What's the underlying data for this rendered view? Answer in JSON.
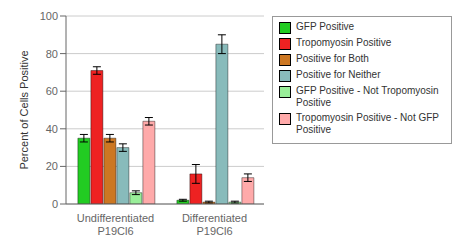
{
  "chart_data": {
    "type": "bar",
    "ylabel": "Percent of Cells Positive",
    "categories": [
      "Undifferentiated\nP19Cl6",
      "Differentiated\nP19Cl6"
    ],
    "series": [
      {
        "name": "GFP Positive",
        "color": "#22cc22",
        "values": [
          35,
          2
        ],
        "errors": [
          2,
          0.5
        ]
      },
      {
        "name": "Tropomyosin Positive",
        "color": "#ee2222",
        "values": [
          71,
          16
        ],
        "errors": [
          2,
          5
        ]
      },
      {
        "name": "Positive for Both",
        "color": "#cc7722",
        "values": [
          35,
          1
        ],
        "errors": [
          2,
          0.5
        ]
      },
      {
        "name": "Positive for Neither",
        "color": "#88bbbb",
        "values": [
          30,
          85
        ],
        "errors": [
          2,
          5
        ]
      },
      {
        "name": "GFP Positive - Not Tropomyosin\nPositive",
        "color": "#99ee99",
        "values": [
          6,
          1
        ],
        "errors": [
          1,
          0.5
        ]
      },
      {
        "name": "Tropomyosin Positive - Not GFP\nPositive",
        "color": "#ffaaaa",
        "values": [
          44,
          14
        ],
        "errors": [
          2,
          2
        ]
      }
    ],
    "ylim": [
      0,
      100
    ],
    "yticks": [
      0,
      20,
      40,
      60,
      80,
      100
    ],
    "grid": true,
    "legend": "upper right"
  }
}
